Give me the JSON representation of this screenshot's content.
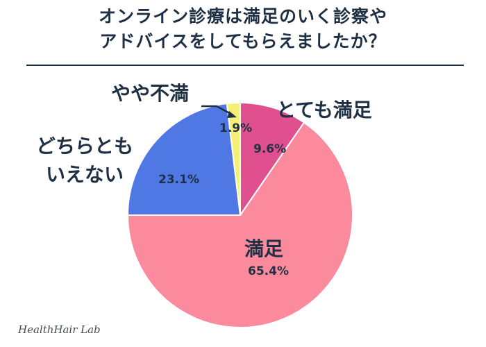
{
  "title": {
    "line1": "オンライン診療は満足のいく診察や",
    "line2": "アドバイスをしてもらえましたか？"
  },
  "credit": "HealthHair Lab",
  "chart_data": {
    "type": "pie",
    "title": "オンライン診療は満足のいく診察やアドバイスをしてもらえましたか？",
    "slices": [
      {
        "label": "とても満足",
        "value": 9.6,
        "display": "9.6%",
        "color": "#e0508f"
      },
      {
        "label": "満足",
        "value": 65.4,
        "display": "65.4%",
        "color": "#fb8a9c"
      },
      {
        "label": "どちらともいえない",
        "label_lines": [
          "どちらとも",
          "いえない"
        ],
        "value": 23.1,
        "display": "23.1%",
        "color": "#5078e4"
      },
      {
        "label": "やや不満",
        "value": 1.9,
        "display": "1.9%",
        "color": "#f5ef76"
      }
    ],
    "start_angle": "12 o'clock",
    "direction": "clockwise"
  }
}
